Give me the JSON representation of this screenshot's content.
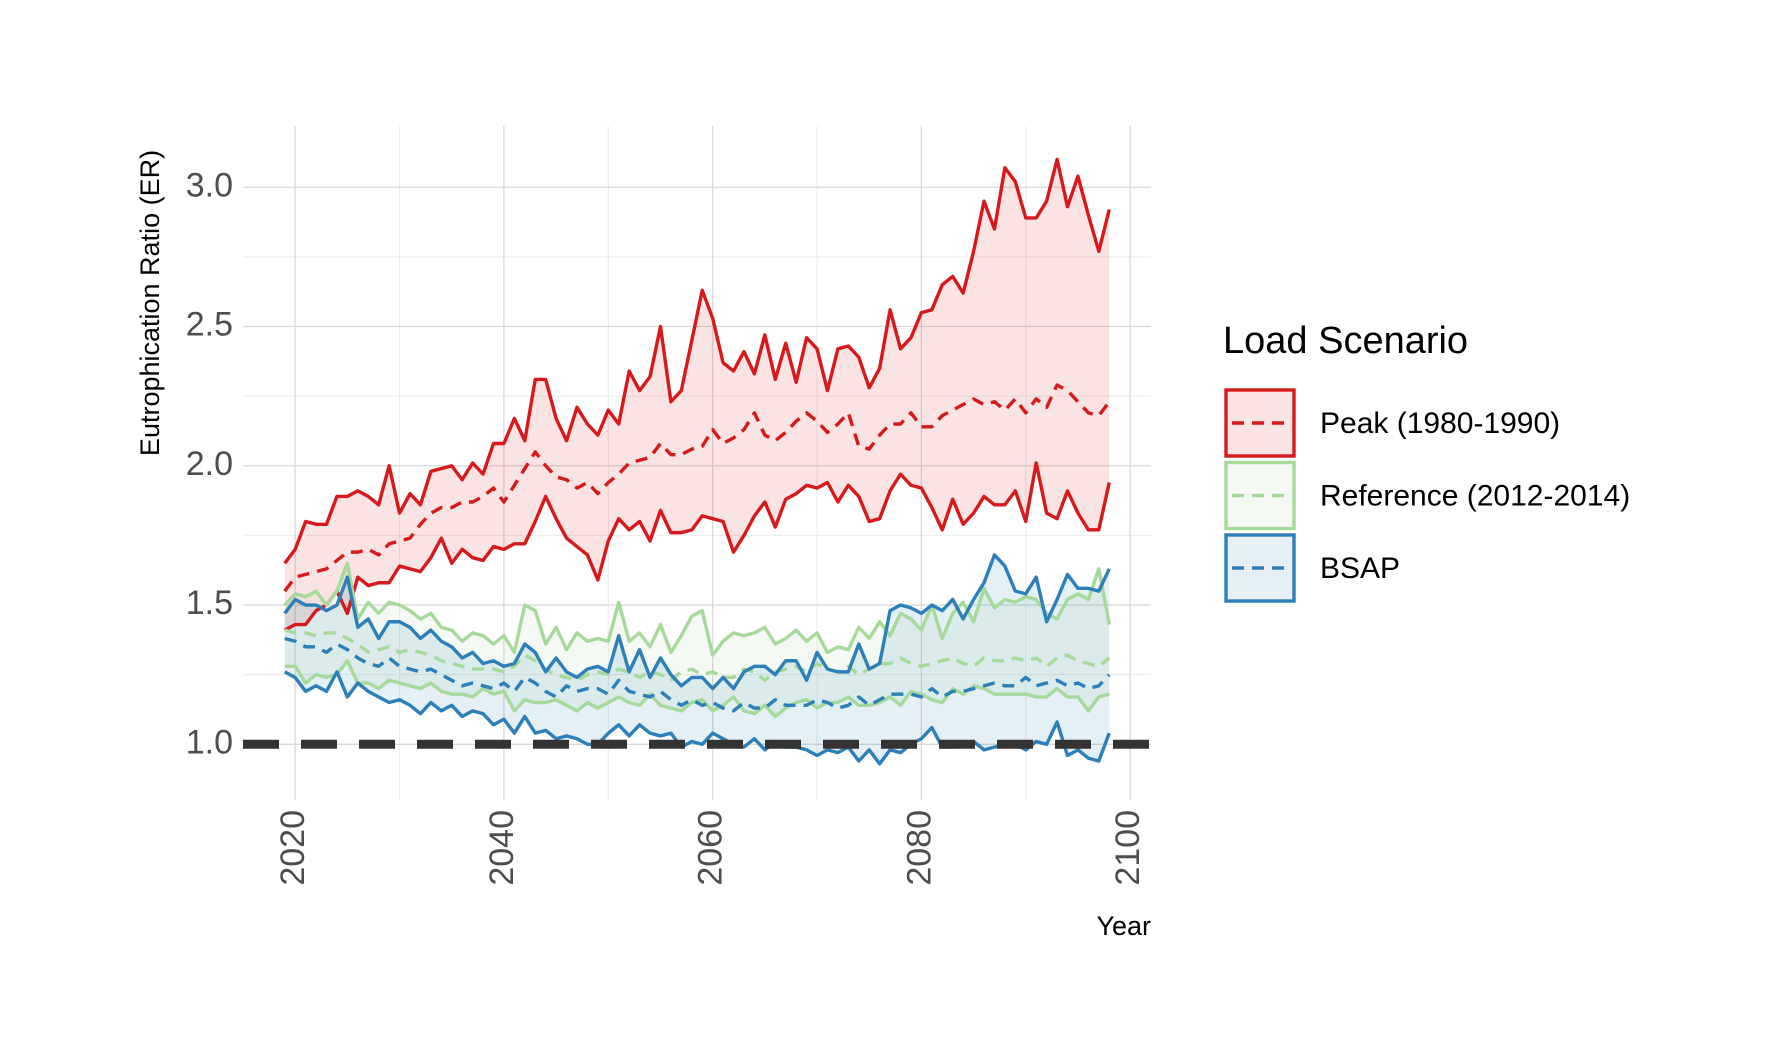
{
  "chart_data": {
    "type": "ribbon-line",
    "y_label": "Eutrophication Ratio (ER)",
    "x_label": "Year",
    "legend_title": "Load Scenario",
    "legend_position": "right",
    "grid": true,
    "xlim": [
      2015,
      2102
    ],
    "ylim": [
      0.8,
      3.22
    ],
    "xticks": [
      2020,
      2040,
      2060,
      2080,
      2100
    ],
    "yticks": [
      {
        "value": 1,
        "label": "1.0"
      },
      1.5,
      {
        "value": 2,
        "label": "2.0"
      },
      2.5,
      {
        "value": 3,
        "label": "3.0"
      }
    ],
    "hline": 1,
    "hline_color": "#333333",
    "ribbon_opacity": 0.12,
    "x": [
      2019,
      2020,
      2021,
      2022,
      2023,
      2024,
      2025,
      2026,
      2027,
      2028,
      2029,
      2030,
      2031,
      2032,
      2033,
      2034,
      2035,
      2036,
      2037,
      2038,
      2039,
      2040,
      2041,
      2042,
      2043,
      2044,
      2045,
      2046,
      2047,
      2048,
      2049,
      2050,
      2051,
      2052,
      2053,
      2054,
      2055,
      2056,
      2057,
      2058,
      2059,
      2060,
      2061,
      2062,
      2063,
      2064,
      2065,
      2066,
      2067,
      2068,
      2069,
      2070,
      2071,
      2072,
      2073,
      2074,
      2075,
      2076,
      2077,
      2078,
      2079,
      2080,
      2081,
      2082,
      2083,
      2084,
      2085,
      2086,
      2087,
      2088,
      2089,
      2090,
      2091,
      2092,
      2093,
      2094,
      2095,
      2096,
      2097,
      2098
    ],
    "series": [
      {
        "name": "Peak (1980-1990)",
        "color": "#d7191c",
        "upper": [
          1.65,
          1.7,
          1.8,
          1.79,
          1.79,
          1.89,
          1.89,
          1.91,
          1.89,
          1.86,
          2.0,
          1.83,
          1.9,
          1.86,
          1.98,
          1.99,
          2.0,
          1.95,
          2.01,
          1.97,
          2.08,
          2.08,
          2.17,
          2.09,
          2.31,
          2.31,
          2.17,
          2.09,
          2.21,
          2.15,
          2.11,
          2.2,
          2.15,
          2.34,
          2.27,
          2.32,
          2.5,
          2.23,
          2.27,
          2.45,
          2.63,
          2.53,
          2.37,
          2.34,
          2.41,
          2.33,
          2.47,
          2.31,
          2.44,
          2.3,
          2.46,
          2.42,
          2.27,
          2.42,
          2.43,
          2.39,
          2.28,
          2.35,
          2.56,
          2.42,
          2.46,
          2.55,
          2.56,
          2.65,
          2.68,
          2.62,
          2.77,
          2.95,
          2.85,
          3.07,
          3.02,
          2.89,
          2.89,
          2.95,
          3.1,
          2.93,
          3.04,
          2.9,
          2.77,
          2.92
        ],
        "mean": [
          1.55,
          1.6,
          1.61,
          1.62,
          1.63,
          1.66,
          1.69,
          1.69,
          1.7,
          1.68,
          1.72,
          1.73,
          1.74,
          1.79,
          1.83,
          1.85,
          1.85,
          1.87,
          1.87,
          1.89,
          1.92,
          1.87,
          1.93,
          1.99,
          2.05,
          2.0,
          1.96,
          1.95,
          1.92,
          1.94,
          1.9,
          1.94,
          1.97,
          2.01,
          2.02,
          2.03,
          2.08,
          2.04,
          2.04,
          2.06,
          2.07,
          2.13,
          2.08,
          2.1,
          2.13,
          2.19,
          2.11,
          2.09,
          2.12,
          2.16,
          2.19,
          2.16,
          2.12,
          2.15,
          2.19,
          2.07,
          2.06,
          2.11,
          2.15,
          2.15,
          2.19,
          2.14,
          2.14,
          2.18,
          2.2,
          2.22,
          2.24,
          2.22,
          2.23,
          2.2,
          2.24,
          2.19,
          2.24,
          2.21,
          2.29,
          2.27,
          2.23,
          2.19,
          2.18,
          2.23
        ],
        "lower": [
          1.41,
          1.43,
          1.43,
          1.48,
          1.5,
          1.55,
          1.47,
          1.6,
          1.57,
          1.58,
          1.58,
          1.64,
          1.63,
          1.62,
          1.67,
          1.74,
          1.65,
          1.7,
          1.67,
          1.66,
          1.71,
          1.7,
          1.72,
          1.72,
          1.8,
          1.89,
          1.81,
          1.74,
          1.71,
          1.68,
          1.59,
          1.73,
          1.81,
          1.77,
          1.8,
          1.73,
          1.84,
          1.76,
          1.76,
          1.77,
          1.82,
          1.81,
          1.8,
          1.69,
          1.75,
          1.82,
          1.87,
          1.78,
          1.88,
          1.9,
          1.93,
          1.92,
          1.94,
          1.87,
          1.93,
          1.89,
          1.8,
          1.81,
          1.91,
          1.97,
          1.93,
          1.92,
          1.85,
          1.77,
          1.88,
          1.79,
          1.83,
          1.89,
          1.86,
          1.86,
          1.91,
          1.8,
          2.01,
          1.83,
          1.81,
          1.91,
          1.83,
          1.77,
          1.77,
          1.94
        ]
      },
      {
        "name": "Reference (2012-2014)",
        "color": "#a6d99a",
        "upper": [
          1.5,
          1.54,
          1.53,
          1.55,
          1.5,
          1.55,
          1.65,
          1.45,
          1.51,
          1.47,
          1.51,
          1.5,
          1.48,
          1.45,
          1.47,
          1.42,
          1.41,
          1.37,
          1.4,
          1.39,
          1.36,
          1.39,
          1.33,
          1.5,
          1.48,
          1.36,
          1.42,
          1.34,
          1.4,
          1.37,
          1.38,
          1.37,
          1.51,
          1.37,
          1.4,
          1.35,
          1.43,
          1.33,
          1.39,
          1.46,
          1.48,
          1.32,
          1.37,
          1.4,
          1.39,
          1.4,
          1.42,
          1.36,
          1.38,
          1.41,
          1.37,
          1.4,
          1.33,
          1.35,
          1.34,
          1.42,
          1.38,
          1.44,
          1.39,
          1.47,
          1.45,
          1.41,
          1.5,
          1.38,
          1.47,
          1.51,
          1.44,
          1.56,
          1.49,
          1.52,
          1.51,
          1.53,
          1.52,
          1.47,
          1.45,
          1.52,
          1.54,
          1.52,
          1.63,
          1.43
        ],
        "mean": [
          1.41,
          1.4,
          1.4,
          1.39,
          1.4,
          1.4,
          1.38,
          1.36,
          1.33,
          1.34,
          1.35,
          1.33,
          1.34,
          1.33,
          1.32,
          1.3,
          1.29,
          1.28,
          1.27,
          1.27,
          1.27,
          1.26,
          1.28,
          1.32,
          1.3,
          1.27,
          1.25,
          1.24,
          1.23,
          1.25,
          1.26,
          1.25,
          1.27,
          1.26,
          1.24,
          1.26,
          1.25,
          1.23,
          1.26,
          1.27,
          1.25,
          1.26,
          1.24,
          1.24,
          1.27,
          1.26,
          1.23,
          1.26,
          1.27,
          1.28,
          1.26,
          1.29,
          1.27,
          1.26,
          1.28,
          1.25,
          1.27,
          1.29,
          1.29,
          1.31,
          1.29,
          1.28,
          1.29,
          1.3,
          1.31,
          1.29,
          1.28,
          1.31,
          1.3,
          1.3,
          1.31,
          1.3,
          1.31,
          1.28,
          1.31,
          1.32,
          1.3,
          1.29,
          1.28,
          1.31
        ],
        "lower": [
          1.28,
          1.28,
          1.22,
          1.25,
          1.24,
          1.25,
          1.3,
          1.22,
          1.22,
          1.2,
          1.23,
          1.22,
          1.21,
          1.2,
          1.22,
          1.19,
          1.18,
          1.18,
          1.17,
          1.2,
          1.18,
          1.19,
          1.12,
          1.16,
          1.15,
          1.15,
          1.16,
          1.14,
          1.12,
          1.15,
          1.13,
          1.15,
          1.17,
          1.15,
          1.14,
          1.18,
          1.14,
          1.13,
          1.12,
          1.15,
          1.16,
          1.12,
          1.14,
          1.17,
          1.12,
          1.11,
          1.14,
          1.1,
          1.13,
          1.15,
          1.16,
          1.13,
          1.15,
          1.15,
          1.17,
          1.14,
          1.14,
          1.15,
          1.17,
          1.14,
          1.19,
          1.18,
          1.16,
          1.15,
          1.2,
          1.18,
          1.21,
          1.2,
          1.18,
          1.18,
          1.18,
          1.18,
          1.17,
          1.17,
          1.2,
          1.17,
          1.17,
          1.12,
          1.17,
          1.18
        ]
      },
      {
        "name": "BSAP",
        "color": "#2c7fb8",
        "upper": [
          1.47,
          1.52,
          1.5,
          1.5,
          1.48,
          1.5,
          1.6,
          1.42,
          1.45,
          1.38,
          1.44,
          1.44,
          1.42,
          1.38,
          1.41,
          1.37,
          1.35,
          1.31,
          1.33,
          1.29,
          1.3,
          1.28,
          1.29,
          1.36,
          1.33,
          1.26,
          1.31,
          1.26,
          1.24,
          1.27,
          1.28,
          1.26,
          1.39,
          1.26,
          1.34,
          1.24,
          1.31,
          1.25,
          1.21,
          1.24,
          1.24,
          1.2,
          1.24,
          1.2,
          1.26,
          1.28,
          1.28,
          1.25,
          1.3,
          1.3,
          1.23,
          1.33,
          1.27,
          1.26,
          1.26,
          1.36,
          1.27,
          1.29,
          1.48,
          1.5,
          1.49,
          1.47,
          1.5,
          1.48,
          1.52,
          1.45,
          1.52,
          1.58,
          1.68,
          1.64,
          1.55,
          1.54,
          1.6,
          1.44,
          1.52,
          1.61,
          1.56,
          1.56,
          1.55,
          1.63
        ],
        "mean": [
          1.38,
          1.37,
          1.35,
          1.35,
          1.33,
          1.36,
          1.34,
          1.31,
          1.29,
          1.28,
          1.31,
          1.28,
          1.27,
          1.26,
          1.27,
          1.25,
          1.23,
          1.21,
          1.22,
          1.21,
          1.2,
          1.22,
          1.19,
          1.24,
          1.22,
          1.19,
          1.17,
          1.21,
          1.19,
          1.2,
          1.2,
          1.18,
          1.23,
          1.19,
          1.18,
          1.17,
          1.19,
          1.16,
          1.14,
          1.16,
          1.14,
          1.15,
          1.13,
          1.12,
          1.15,
          1.13,
          1.13,
          1.16,
          1.14,
          1.14,
          1.14,
          1.16,
          1.15,
          1.13,
          1.14,
          1.17,
          1.14,
          1.16,
          1.18,
          1.18,
          1.18,
          1.17,
          1.2,
          1.17,
          1.19,
          1.19,
          1.2,
          1.21,
          1.22,
          1.21,
          1.21,
          1.24,
          1.21,
          1.22,
          1.23,
          1.21,
          1.22,
          1.2,
          1.21,
          1.25
        ],
        "lower": [
          1.26,
          1.24,
          1.19,
          1.21,
          1.19,
          1.26,
          1.17,
          1.22,
          1.19,
          1.17,
          1.15,
          1.16,
          1.14,
          1.11,
          1.15,
          1.12,
          1.14,
          1.1,
          1.12,
          1.11,
          1.07,
          1.09,
          1.04,
          1.1,
          1.04,
          1.05,
          1.02,
          1.03,
          1.02,
          1.0,
          1.0,
          1.04,
          1.07,
          1.03,
          1.07,
          1.04,
          1.03,
          1.04,
          0.99,
          1.01,
          1.0,
          1.04,
          1.02,
          1.0,
          0.99,
          1.02,
          0.98,
          1.01,
          0.99,
          0.99,
          0.98,
          0.96,
          0.98,
          0.97,
          0.99,
          0.94,
          0.98,
          0.93,
          0.98,
          0.97,
          1.0,
          1.02,
          1.06,
          0.99,
          0.99,
          1.0,
          1.01,
          0.98,
          0.99,
          1.0,
          1.0,
          0.98,
          1.01,
          1.0,
          1.08,
          0.96,
          0.98,
          0.95,
          0.94,
          1.04
        ]
      }
    ]
  }
}
